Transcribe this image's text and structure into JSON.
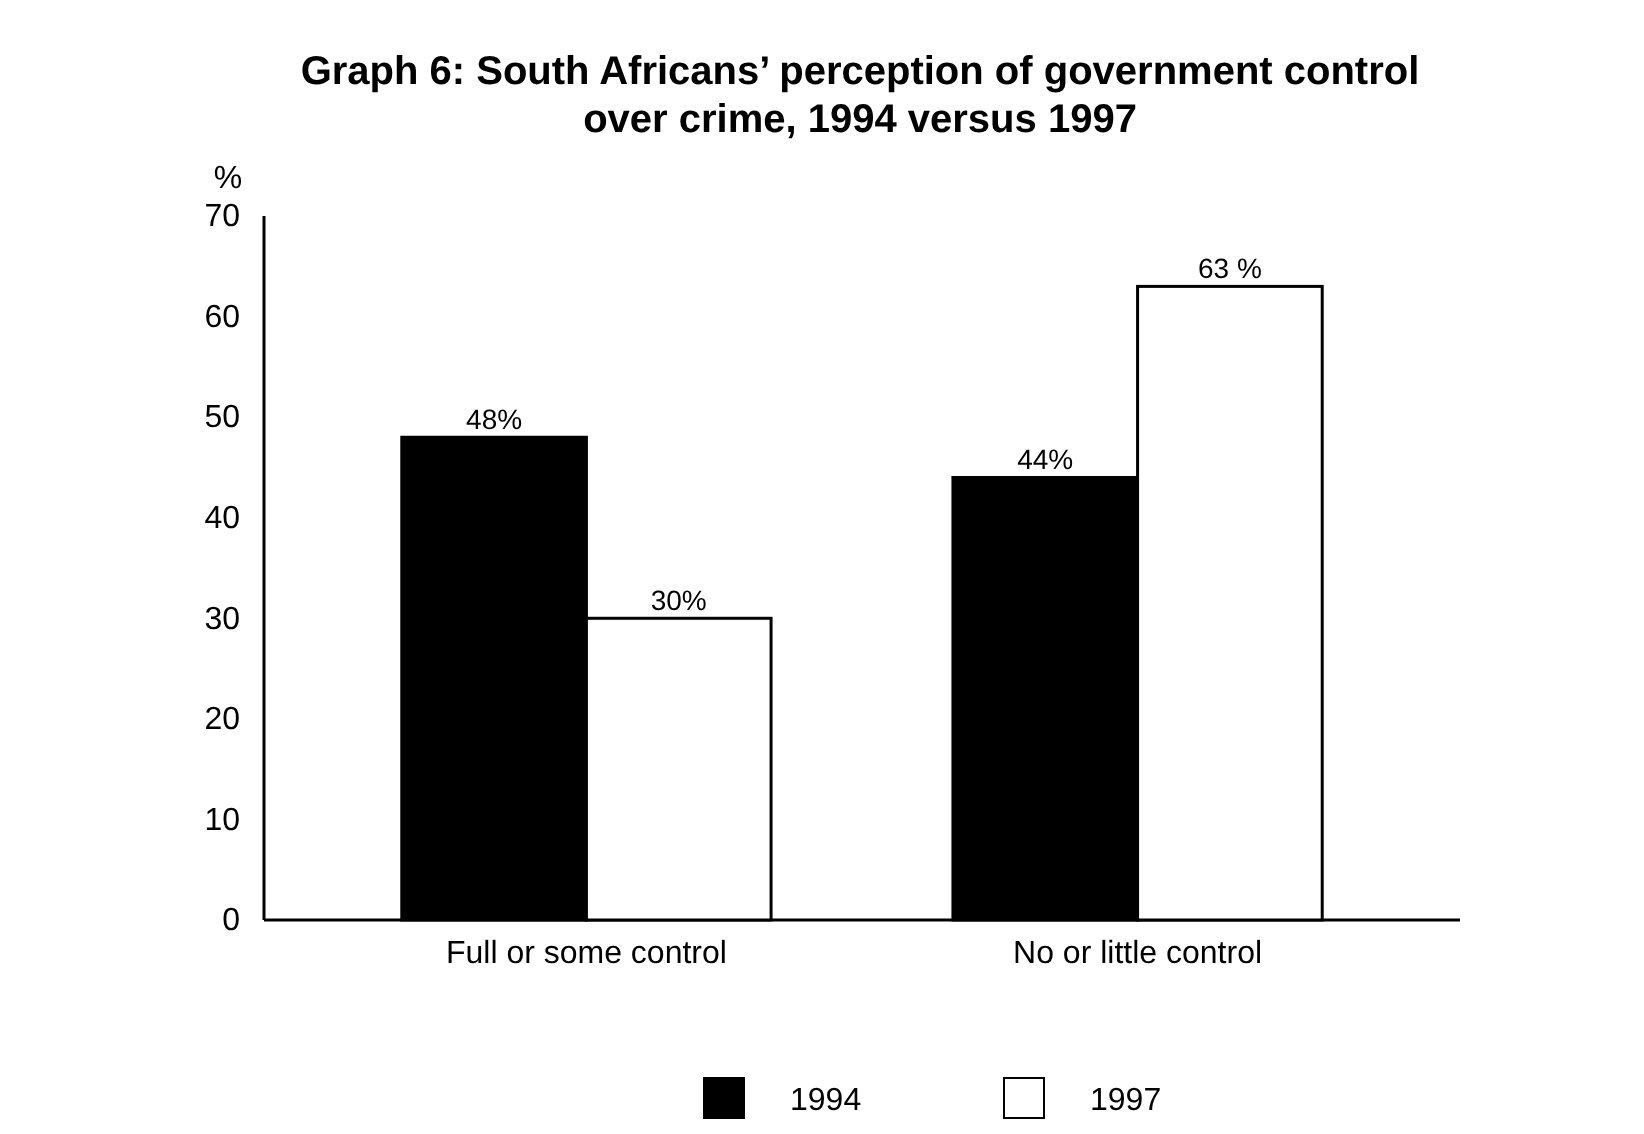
{
  "chart_data": {
    "type": "bar",
    "title": "Graph 6: South Africans’ perception of government control over crime, 1994 versus 1997",
    "ylabel": "%",
    "categories": [
      "Full or some control",
      "No or little control"
    ],
    "series": [
      {
        "name": "1994",
        "color": "#000000",
        "values": [
          48,
          44
        ],
        "value_labels": [
          "48%",
          "44%"
        ]
      },
      {
        "name": "1997",
        "color": "#ffffff",
        "values": [
          30,
          63
        ],
        "value_labels": [
          "30%",
          "63 %"
        ]
      }
    ],
    "ylim": [
      0,
      70
    ],
    "yticks": [
      0,
      10,
      20,
      30,
      40,
      50,
      60,
      70
    ],
    "grid": false,
    "legend": "bottom"
  }
}
